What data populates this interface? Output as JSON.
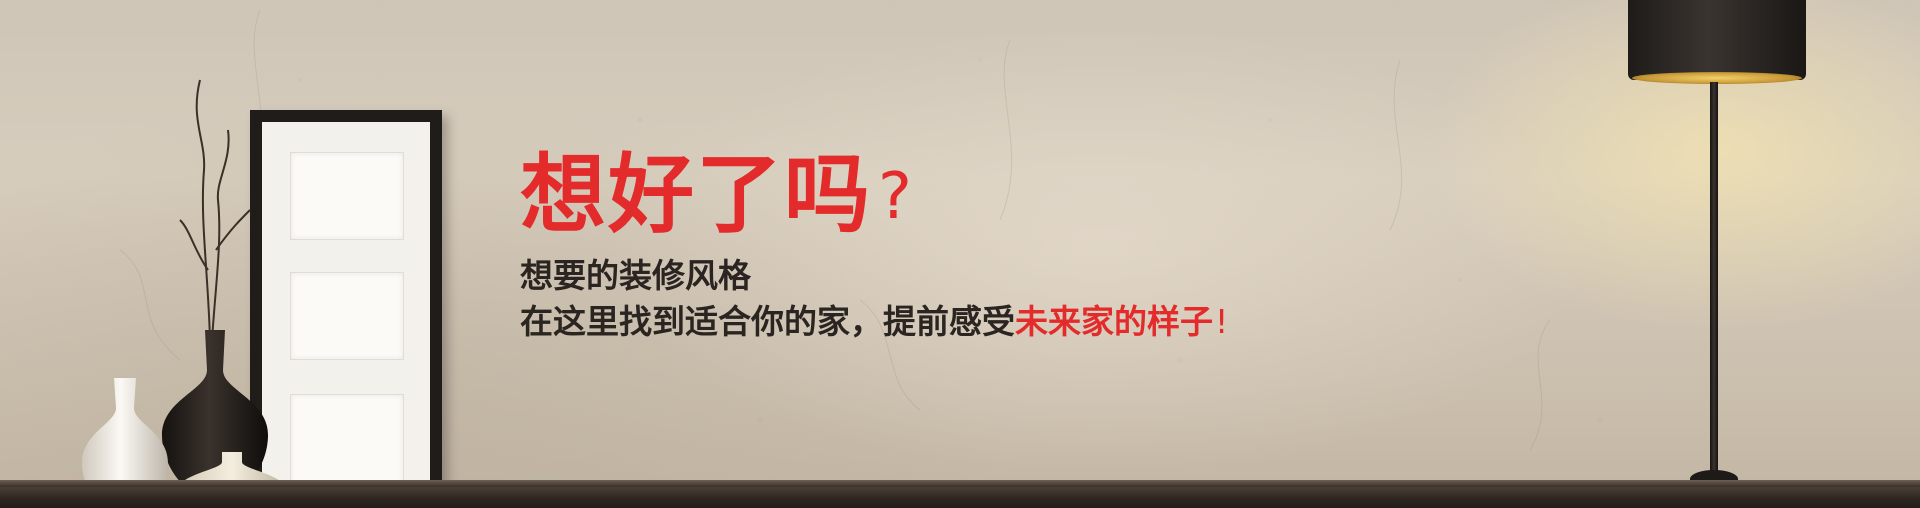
{
  "banner": {
    "headline": "想好了吗",
    "question_mark": "?",
    "line1": "想要的装修风格",
    "line2_prefix": "在这里找到适合你的家，提前感受",
    "line2_highlight": "未来家的样子",
    "line2_suffix": "!"
  },
  "colors": {
    "accent_red": "#e32b2b",
    "text_dark": "#2b2522",
    "wall": "#d7cdbd"
  },
  "icons": {
    "frame": "door-frame-decoration",
    "lamp": "floor-lamp-decoration",
    "vases": "vase-decoration"
  }
}
